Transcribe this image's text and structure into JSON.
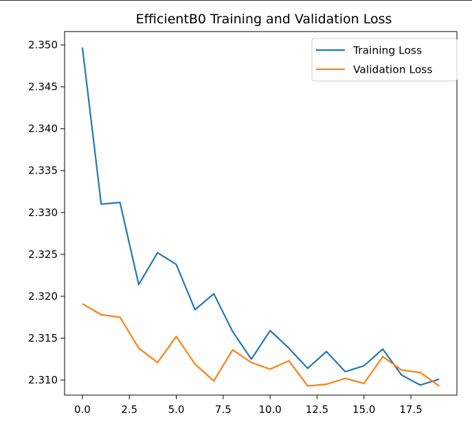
{
  "chart_data": {
    "type": "line",
    "title": "EfficientB0 Training and Validation Loss",
    "xlabel": "",
    "ylabel": "",
    "x": [
      0,
      1,
      2,
      3,
      4,
      5,
      6,
      7,
      8,
      9,
      10,
      11,
      12,
      13,
      14,
      15,
      16,
      17,
      18,
      19
    ],
    "series": [
      {
        "name": "Training Loss",
        "color": "#1f77b4",
        "values": [
          2.3497,
          2.331,
          2.3312,
          2.3214,
          2.3252,
          2.3238,
          2.3184,
          2.3203,
          2.3158,
          2.3125,
          2.3159,
          2.3138,
          2.3114,
          2.3134,
          2.311,
          2.3117,
          2.3137,
          2.3106,
          2.3094,
          2.3101
        ]
      },
      {
        "name": "Validation Loss",
        "color": "#ff7f0e",
        "values": [
          2.3191,
          2.3178,
          2.3175,
          2.3138,
          2.3121,
          2.3152,
          2.3119,
          2.3099,
          2.3136,
          2.3121,
          2.3113,
          2.3123,
          2.3093,
          2.3095,
          2.3102,
          2.3096,
          2.3128,
          2.3112,
          2.3109,
          2.3093
        ]
      }
    ],
    "xlim": [
      -0.95,
      19.95
    ],
    "ylim": [
      2.3082,
      2.3516
    ],
    "xticks": [
      0.0,
      2.5,
      5.0,
      7.5,
      10.0,
      12.5,
      15.0,
      17.5
    ],
    "xtick_labels": [
      "0.0",
      "2.5",
      "5.0",
      "7.5",
      "10.0",
      "12.5",
      "15.0",
      "17.5"
    ],
    "yticks": [
      2.31,
      2.315,
      2.32,
      2.325,
      2.33,
      2.335,
      2.34,
      2.345,
      2.35
    ],
    "ytick_labels": [
      "2.310",
      "2.315",
      "2.320",
      "2.325",
      "2.330",
      "2.335",
      "2.340",
      "2.345",
      "2.350"
    ],
    "grid": false,
    "legend_position": "top-right"
  }
}
